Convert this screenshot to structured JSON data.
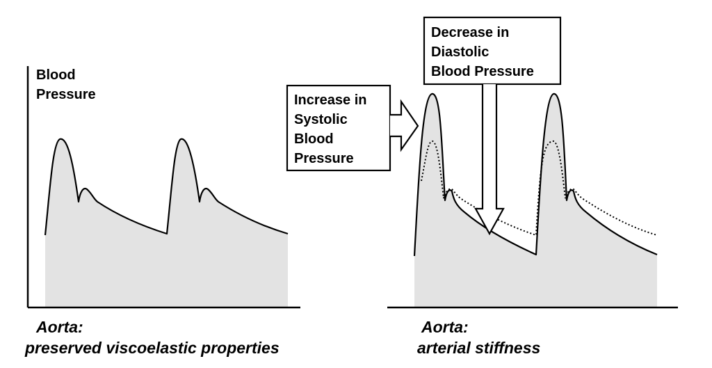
{
  "left_panel": {
    "y_axis_label_line1": "Blood",
    "y_axis_label_line2": "Pressure",
    "caption_line1": "Aorta:",
    "caption_line2": "preserved viscoelastic properties"
  },
  "right_panel": {
    "systolic_box": [
      "Increase in",
      "Systolic",
      "Blood",
      "Pressure"
    ],
    "diastolic_box": [
      "Decrease in",
      "Diastolic",
      "Blood Pressure"
    ],
    "caption_line1": "Aorta:",
    "caption_line2": "arterial stiffness"
  },
  "colors": {
    "waveform_fill": "#e3e3e3",
    "line": "#000000"
  }
}
